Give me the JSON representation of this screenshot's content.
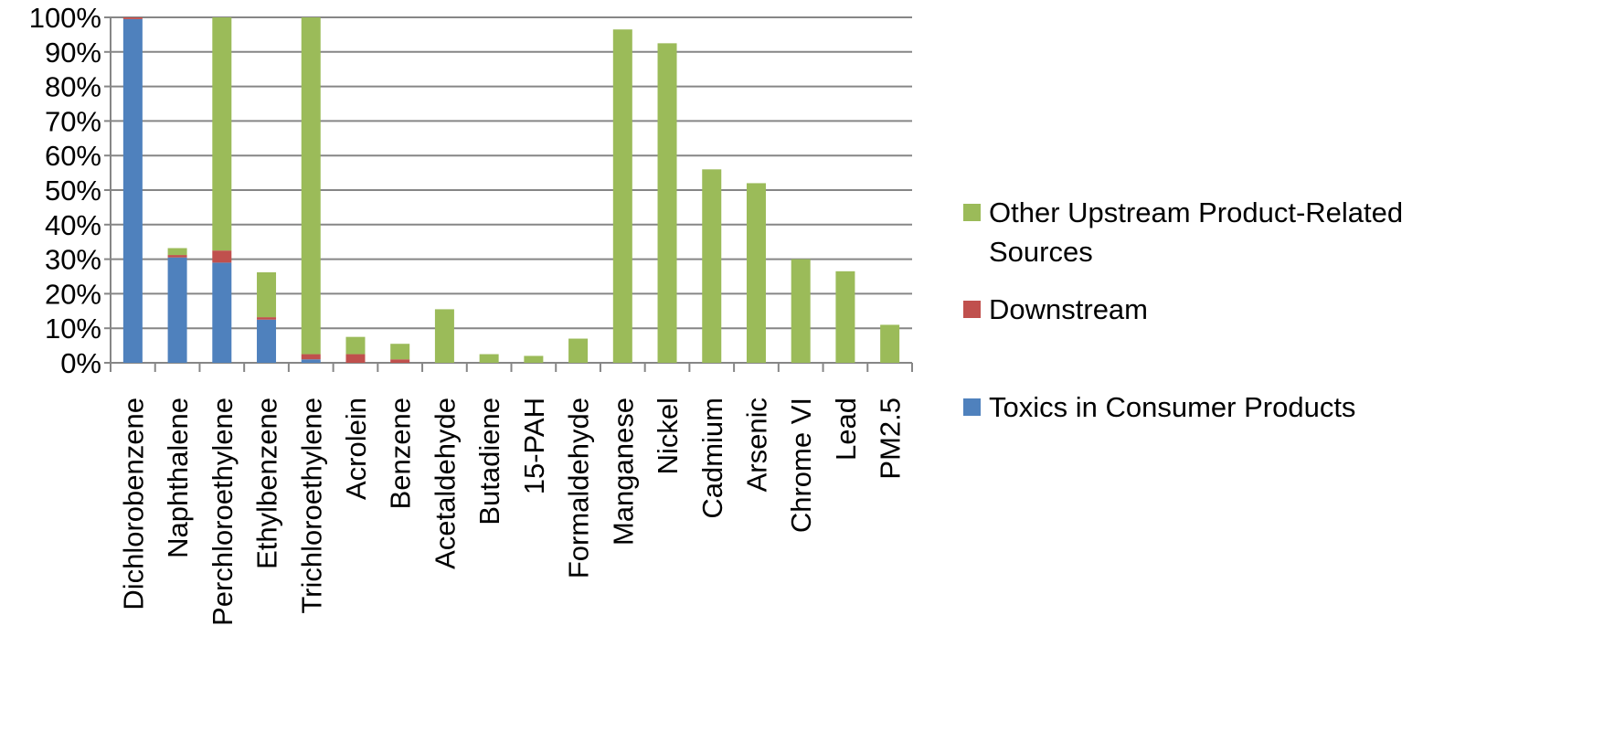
{
  "chart_data": {
    "type": "bar",
    "stacked": true,
    "categories": [
      "Dichlorobenzene",
      "Naphthalene",
      "Perchloroethylene",
      "Ethylbenzene",
      "Trichloroethylene",
      "Acrolein",
      "Benzene",
      "Acetaldehyde",
      "Butadiene",
      "15-PAH",
      "Formaldehyde",
      "Manganese",
      "Nickel",
      "Cadmium",
      "Arsenic",
      "Chrome VI",
      "Lead",
      "PM2.5"
    ],
    "series": [
      {
        "name": "Toxics in Consumer Products",
        "color": "#4F81BD",
        "values": [
          99.5,
          30.5,
          29,
          12.5,
          1,
          0,
          0,
          0,
          0,
          0,
          0,
          0,
          0,
          0,
          0,
          0,
          0,
          0
        ]
      },
      {
        "name": "Downstream",
        "color": "#C0504D",
        "values": [
          0.5,
          0.7,
          3.5,
          0.7,
          1.5,
          2.5,
          1,
          0,
          0,
          0,
          0,
          0,
          0,
          0,
          0,
          0,
          0,
          0
        ]
      },
      {
        "name": "Other Upstream Product-Related Sources",
        "color": "#9BBB59",
        "values": [
          0,
          2,
          67.5,
          13,
          97.5,
          5,
          4.5,
          15.5,
          2.5,
          2,
          7,
          96.5,
          92.5,
          56,
          52,
          30,
          26.5,
          11
        ]
      }
    ],
    "y_ticks": [
      "0%",
      "10%",
      "20%",
      "30%",
      "40%",
      "50%",
      "60%",
      "70%",
      "80%",
      "90%",
      "100%"
    ],
    "ylim": [
      0,
      100
    ],
    "grid": true,
    "legend_position": "right",
    "legend_order": [
      "Other Upstream Product-Related Sources",
      "Downstream",
      "Toxics in Consumer Products"
    ],
    "legend_lines": {
      "Other Upstream Product-Related Sources": [
        "Other Upstream Product-Related",
        "Sources"
      ],
      "Downstream": [
        "Downstream"
      ],
      "Toxics in Consumer Products": [
        "Toxics in Consumer Products"
      ]
    }
  }
}
